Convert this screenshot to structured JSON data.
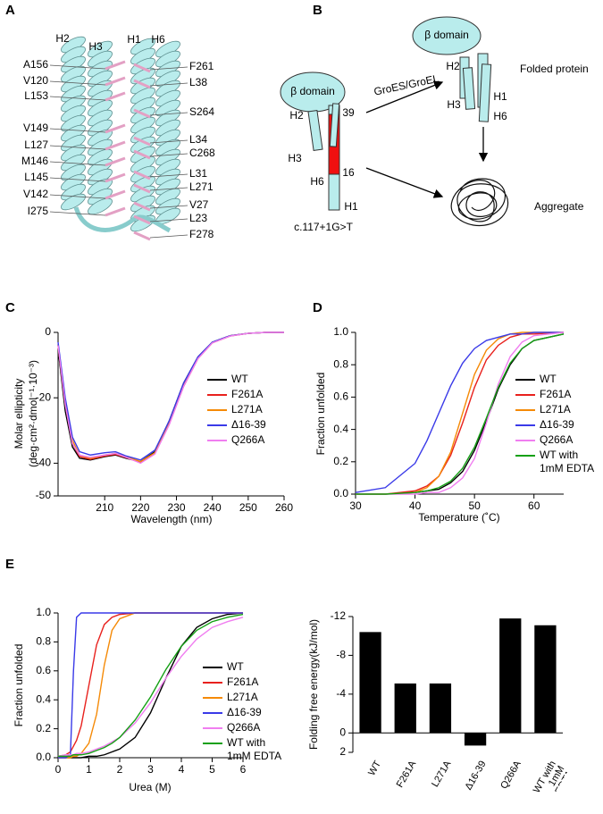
{
  "panel_a": {
    "label": "A",
    "helices": [
      "H2",
      "H3",
      "H1",
      "H6"
    ],
    "left_residues": [
      "A156",
      "V120",
      "L153",
      "V149",
      "L127",
      "M146",
      "L145",
      "V142",
      "I275"
    ],
    "right_residues": [
      "F261",
      "L38",
      "S264",
      "L34",
      "C268",
      "L31",
      "L271",
      "V27",
      "L23",
      "F278"
    ]
  },
  "panel_b": {
    "label": "B",
    "unfolded": {
      "domain": "β domain",
      "h2": "H2",
      "h3": "H3",
      "h6": "H6",
      "h1": "H1",
      "site_39": "39",
      "site_16": "16",
      "mutation": "c.117+1G>T"
    },
    "chaperone": "GroES/GroEL",
    "folded": {
      "domain": "β domain",
      "h2": "H2",
      "h3": "H3",
      "h1": "H1",
      "h6": "H6",
      "caption": "Folded protein"
    },
    "aggregate": "Aggregate"
  },
  "chart_data": [
    {
      "type": "line",
      "panel": "C",
      "xlabel": "Wavelength (nm)",
      "ylabel": "Molar ellipticity",
      "ylabel_units": "(deg·cm²·dmol⁻¹·10⁻³)",
      "x": [
        197,
        199,
        201,
        203,
        206,
        210,
        213,
        216,
        220,
        224,
        228,
        232,
        236,
        240,
        245,
        250,
        255,
        260
      ],
      "xlim": [
        197,
        260
      ],
      "xticks": [
        210,
        220,
        230,
        240,
        250,
        260
      ],
      "ylim": [
        -50,
        0
      ],
      "yticks": [
        0,
        -20,
        -40,
        -50
      ],
      "legend": "right",
      "series": [
        {
          "name": "WT",
          "color": "#000000",
          "values": [
            -5,
            -24,
            -35,
            -38.5,
            -39,
            -38,
            -37.5,
            -38.5,
            -39.5,
            -36.5,
            -27,
            -15.5,
            -7.5,
            -3,
            -1,
            -0.3,
            0,
            0
          ]
        },
        {
          "name": "F261A",
          "color": "#e8211d",
          "values": [
            -4,
            -22,
            -34,
            -38,
            -38.8,
            -37.8,
            -37.3,
            -38.3,
            -39.8,
            -37,
            -28,
            -16.5,
            -8,
            -3.2,
            -1.1,
            -0.3,
            0,
            0
          ]
        },
        {
          "name": "L271A",
          "color": "#f58a07",
          "values": [
            -4,
            -21,
            -33,
            -37.5,
            -38.5,
            -37.5,
            -37,
            -38,
            -39.5,
            -36.8,
            -27.5,
            -16,
            -7.8,
            -3.1,
            -1,
            -0.3,
            0,
            0
          ]
        },
        {
          "name": "Δ16-39",
          "color": "#3a3ae8",
          "values": [
            -3,
            -20,
            -32,
            -36.5,
            -37.5,
            -36.8,
            -36.5,
            -37.8,
            -39,
            -36,
            -27,
            -15.5,
            -7.5,
            -3,
            -1,
            -0.3,
            0,
            0
          ]
        },
        {
          "name": "Q266A",
          "color": "#f07ef0",
          "values": [
            -4,
            -22,
            -34,
            -37.5,
            -38.2,
            -37.5,
            -37,
            -38.2,
            -40,
            -37.2,
            -28.2,
            -16.5,
            -8,
            -3.2,
            -1.1,
            -0.3,
            0,
            0
          ]
        }
      ]
    },
    {
      "type": "line",
      "panel": "D",
      "xlabel": "Temperature (˚C)",
      "ylabel": "Fraction unfolded",
      "x": [
        30,
        35,
        40,
        42,
        44,
        46,
        48,
        50,
        52,
        54,
        56,
        58,
        60,
        65
      ],
      "xlim": [
        30,
        65
      ],
      "xticks": [
        30,
        40,
        50,
        60
      ],
      "ylim": [
        0,
        1
      ],
      "yticks": [
        {
          "value": 0,
          "label": "0.0"
        },
        {
          "value": 0.2,
          "label": "0.2"
        },
        {
          "value": 0.4,
          "label": "0.4"
        },
        {
          "value": 0.6,
          "label": "0.6"
        },
        {
          "value": 0.8,
          "label": "0.8"
        },
        {
          "value": 1,
          "label": "1.0"
        }
      ],
      "legend": "right",
      "series": [
        {
          "name": "WT",
          "color": "#000000",
          "values": [
            0,
            0,
            0.01,
            0.02,
            0.03,
            0.07,
            0.14,
            0.27,
            0.45,
            0.65,
            0.8,
            0.9,
            0.95,
            0.99
          ]
        },
        {
          "name": "F261A",
          "color": "#e8211d",
          "values": [
            0,
            0,
            0.02,
            0.05,
            0.11,
            0.24,
            0.44,
            0.66,
            0.83,
            0.92,
            0.97,
            0.99,
            0.99,
            1
          ]
        },
        {
          "name": "L271A",
          "color": "#f58a07",
          "values": [
            0,
            0,
            0.01,
            0.04,
            0.11,
            0.26,
            0.5,
            0.74,
            0.89,
            0.96,
            0.99,
            1,
            1,
            1
          ]
        },
        {
          "name": "Δ16-39",
          "color": "#3a3ae8",
          "values": [
            0.01,
            0.04,
            0.19,
            0.33,
            0.5,
            0.67,
            0.81,
            0.9,
            0.95,
            0.97,
            0.99,
            0.99,
            1,
            1
          ]
        },
        {
          "name": "Q266A",
          "color": "#f07ef0",
          "values": [
            0,
            0,
            0,
            0.01,
            0.01,
            0.04,
            0.1,
            0.22,
            0.44,
            0.68,
            0.85,
            0.94,
            0.98,
            1
          ]
        },
        {
          "name": "WT with 1mM EDTA",
          "color": "#14a014",
          "values": [
            0,
            0,
            0.01,
            0.02,
            0.04,
            0.08,
            0.16,
            0.29,
            0.47,
            0.66,
            0.81,
            0.9,
            0.95,
            0.99
          ]
        }
      ]
    },
    {
      "type": "line",
      "panel": "E",
      "xlabel": "Urea (M)",
      "ylabel": "Fraction unfolded",
      "x": [
        0,
        0.25,
        0.4,
        0.5,
        0.6,
        0.75,
        1,
        1.25,
        1.5,
        1.75,
        2,
        2.5,
        3,
        3.5,
        4,
        4.5,
        5,
        5.5,
        6
      ],
      "xlim": [
        0,
        6
      ],
      "xticks": [
        0,
        1,
        2,
        3,
        4,
        5,
        6
      ],
      "ylim": [
        0,
        1
      ],
      "yticks": [
        {
          "value": 0,
          "label": "0.0"
        },
        {
          "value": 0.2,
          "label": "0.2"
        },
        {
          "value": 0.4,
          "label": "0.4"
        },
        {
          "value": 0.6,
          "label": "0.6"
        },
        {
          "value": 0.8,
          "label": "0.8"
        },
        {
          "value": 1,
          "label": "1.0"
        }
      ],
      "legend": "right",
      "series": [
        {
          "name": "WT",
          "color": "#000000",
          "values": [
            0,
            0,
            0,
            0,
            0,
            0,
            0.01,
            0.01,
            0.02,
            0.04,
            0.06,
            0.14,
            0.31,
            0.55,
            0.77,
            0.9,
            0.96,
            0.99,
            1
          ]
        },
        {
          "name": "F261A",
          "color": "#e8211d",
          "values": [
            0.01,
            0.02,
            0.04,
            0.08,
            0.12,
            0.22,
            0.5,
            0.78,
            0.92,
            0.97,
            0.99,
            1,
            1,
            1,
            1,
            1,
            1,
            1,
            1
          ]
        },
        {
          "name": "L271A",
          "color": "#f58a07",
          "values": [
            0,
            0,
            0,
            0.01,
            0.01,
            0.03,
            0.1,
            0.3,
            0.64,
            0.88,
            0.96,
            1,
            1,
            1,
            1,
            1,
            1,
            1,
            1
          ]
        },
        {
          "name": "Δ16-39",
          "color": "#3a3ae8",
          "values": [
            0,
            0,
            0.02,
            0.6,
            0.97,
            1,
            1,
            1,
            1,
            1,
            1,
            1,
            1,
            1,
            1,
            1,
            1,
            1,
            1
          ]
        },
        {
          "name": "Q266A",
          "color": "#f07ef0",
          "values": [
            0.01,
            0.02,
            0.02,
            0.02,
            0.03,
            0.03,
            0.04,
            0.06,
            0.08,
            0.11,
            0.14,
            0.24,
            0.38,
            0.55,
            0.7,
            0.82,
            0.9,
            0.94,
            0.97
          ]
        },
        {
          "name": "WT with 1mM EDTA",
          "color": "#14a014",
          "values": [
            0.01,
            0.01,
            0.01,
            0.02,
            0.02,
            0.02,
            0.03,
            0.05,
            0.07,
            0.1,
            0.14,
            0.26,
            0.42,
            0.61,
            0.77,
            0.88,
            0.94,
            0.97,
            0.99
          ]
        }
      ]
    },
    {
      "type": "bar",
      "ylabel": "Folding free energy(kJ/mol)",
      "color": "#000000",
      "categories": [
        "WT",
        "F261A",
        "L271A",
        "Δ16-39",
        "Q266A",
        "WT with 1mM EDTA"
      ],
      "values": [
        -10.4,
        -5.1,
        -5.1,
        1.3,
        -11.8,
        -11.1
      ],
      "ylim": [
        2,
        -12
      ],
      "yticks": [
        -12,
        -8,
        -4,
        0,
        2
      ]
    }
  ]
}
